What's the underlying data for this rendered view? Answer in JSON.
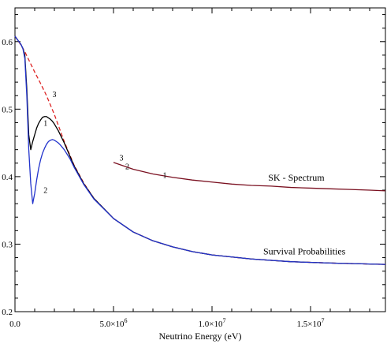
{
  "chart_data": {
    "type": "line",
    "xlabel": "Neutrino Energy (eV)",
    "ylabel": "",
    "xlim": [
      0,
      18800000
    ],
    "ylim": [
      0.2,
      0.65
    ],
    "x_ticks": [
      {
        "value": 0,
        "label": "0.0"
      },
      {
        "value": 5000000,
        "label": "5.0×10",
        "exp": "6"
      },
      {
        "value": 10000000,
        "label": "1.0×10",
        "exp": "7"
      },
      {
        "value": 15000000,
        "label": "1.5×10",
        "exp": "7"
      }
    ],
    "y_ticks": [
      {
        "value": 0.2,
        "label": "0.2"
      },
      {
        "value": 0.3,
        "label": "0.3"
      },
      {
        "value": 0.4,
        "label": "0.4"
      },
      {
        "value": 0.5,
        "label": "0.5"
      },
      {
        "value": 0.6,
        "label": "0.6"
      }
    ],
    "grid": false,
    "series": [
      {
        "name": "3",
        "color": "#dd2222",
        "dash": true,
        "x": [
          0,
          100000,
          300000,
          500000,
          700000,
          1000000,
          1300000,
          1600000,
          2000000,
          2500000,
          3000000,
          3500000,
          4000000,
          5000000,
          6000000,
          7000000,
          8000000,
          9000000,
          10000000,
          12000000,
          14000000,
          16000000,
          18800000
        ],
        "y": [
          0.608,
          0.604,
          0.595,
          0.585,
          0.573,
          0.555,
          0.538,
          0.52,
          0.492,
          0.452,
          0.417,
          0.39,
          0.368,
          0.338,
          0.318,
          0.305,
          0.296,
          0.289,
          0.284,
          0.278,
          0.274,
          0.272,
          0.27
        ]
      },
      {
        "name": "1",
        "color": "#000000",
        "dash": false,
        "x": [
          0,
          100000,
          200000,
          300000,
          400000,
          500000,
          600000,
          700000,
          800000,
          900000,
          1000000,
          1100000,
          1200000,
          1300000,
          1400000,
          1500000,
          1600000,
          1700000,
          1800000,
          1900000,
          2000000,
          2100000,
          2200000,
          2300000,
          2500000,
          3000000,
          3500000,
          4000000,
          5000000,
          6000000,
          7000000,
          8000000,
          9000000,
          10000000,
          12000000,
          14000000,
          16000000,
          18800000
        ],
        "y": [
          0.608,
          0.604,
          0.6,
          0.596,
          0.59,
          0.58,
          0.53,
          0.462,
          0.44,
          0.452,
          0.462,
          0.472,
          0.479,
          0.484,
          0.488,
          0.489,
          0.489,
          0.487,
          0.485,
          0.482,
          0.478,
          0.473,
          0.468,
          0.462,
          0.45,
          0.416,
          0.389,
          0.368,
          0.338,
          0.318,
          0.305,
          0.296,
          0.289,
          0.284,
          0.278,
          0.274,
          0.272,
          0.27
        ]
      },
      {
        "name": "2",
        "color": "#2233cc",
        "dash": false,
        "x": [
          0,
          100000,
          200000,
          300000,
          400000,
          500000,
          600000,
          700000,
          800000,
          900000,
          1000000,
          1100000,
          1200000,
          1300000,
          1400000,
          1500000,
          1600000,
          1700000,
          1800000,
          1900000,
          2000000,
          2100000,
          2200000,
          2300000,
          2500000,
          2800000,
          3000000,
          3500000,
          4000000,
          5000000,
          6000000,
          7000000,
          8000000,
          9000000,
          10000000,
          12000000,
          14000000,
          16000000,
          18800000
        ],
        "y": [
          0.608,
          0.604,
          0.6,
          0.596,
          0.59,
          0.575,
          0.52,
          0.44,
          0.39,
          0.36,
          0.375,
          0.395,
          0.412,
          0.425,
          0.435,
          0.442,
          0.448,
          0.452,
          0.454,
          0.455,
          0.454,
          0.452,
          0.45,
          0.447,
          0.44,
          0.426,
          0.414,
          0.388,
          0.367,
          0.338,
          0.318,
          0.305,
          0.296,
          0.289,
          0.284,
          0.278,
          0.274,
          0.272,
          0.27
        ]
      },
      {
        "name": "SK - Spectrum",
        "color": "#7a1020",
        "dash": false,
        "x": [
          5000000,
          6000000,
          7000000,
          8000000,
          9000000,
          10000000,
          11000000,
          12000000,
          13000000,
          14000000,
          15000000,
          16000000,
          17000000,
          18000000,
          18800000
        ],
        "y": [
          0.421,
          0.411,
          0.404,
          0.399,
          0.395,
          0.392,
          0.389,
          0.387,
          0.386,
          0.384,
          0.383,
          0.382,
          0.381,
          0.38,
          0.379
        ]
      }
    ],
    "annotations": [
      {
        "text": "3",
        "x": 1900000,
        "y": 0.518
      },
      {
        "text": "1",
        "x": 1450000,
        "y": 0.475
      },
      {
        "text": "2",
        "x": 1450000,
        "y": 0.376
      },
      {
        "text": "3",
        "x": 5300000,
        "y": 0.424
      },
      {
        "text": "2",
        "x": 5600000,
        "y": 0.411
      },
      {
        "text": "1",
        "x": 7500000,
        "y": 0.398
      },
      {
        "text": "SK - Spectrum",
        "x": 12850000,
        "y": 0.394
      },
      {
        "text": "Survival Probabilities",
        "x": 12600000,
        "y": 0.285
      }
    ]
  }
}
